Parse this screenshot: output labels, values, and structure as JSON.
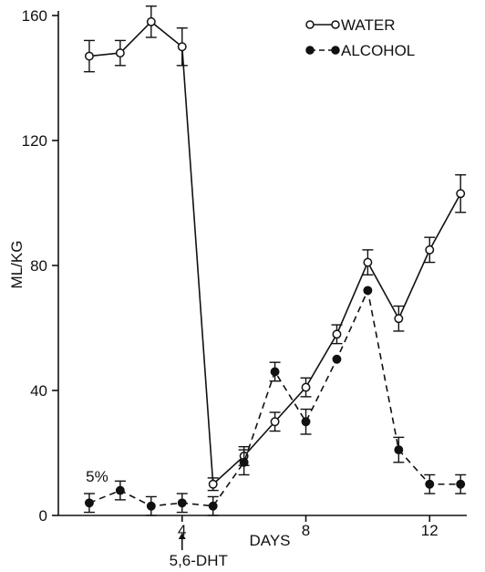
{
  "chart_data": {
    "type": "line",
    "xlabel": "DAYS",
    "ylabel": "ML/KG",
    "xlim": [
      0,
      13.2
    ],
    "ylim": [
      0,
      160
    ],
    "x_ticks": [
      "4",
      "8",
      "12"
    ],
    "y_ticks": [
      "0",
      "40",
      "80",
      "120",
      "160"
    ],
    "legend_position": "top-right",
    "series": [
      {
        "name": "WATER",
        "marker": "open-circle",
        "line": "solid",
        "x": [
          1,
          2,
          3,
          4,
          5,
          6,
          7,
          8,
          9,
          10,
          11,
          12,
          13
        ],
        "y": [
          147,
          148,
          158,
          150,
          10,
          19,
          30,
          41,
          58,
          81,
          63,
          85,
          103
        ],
        "err": [
          5,
          4,
          5,
          6,
          2,
          3,
          3,
          3,
          3,
          4,
          4,
          4,
          6
        ]
      },
      {
        "name": "ALCOHOL",
        "marker": "filled-circle",
        "line": "dashed",
        "x": [
          1,
          2,
          3,
          4,
          5,
          6,
          7,
          8,
          9,
          10,
          11,
          12,
          13
        ],
        "y": [
          4,
          8,
          3,
          4,
          3,
          17,
          46,
          30,
          50,
          72,
          21,
          10,
          10
        ],
        "err": [
          3,
          3,
          3,
          3,
          3,
          4,
          3,
          4,
          0,
          0,
          4,
          3,
          3
        ]
      }
    ],
    "annotations": [
      {
        "id": "concentration",
        "text": "5%",
        "x": 1.25,
        "y": 9
      },
      {
        "id": "treatment",
        "text": "5,6-DHT",
        "x": 4
      }
    ]
  }
}
